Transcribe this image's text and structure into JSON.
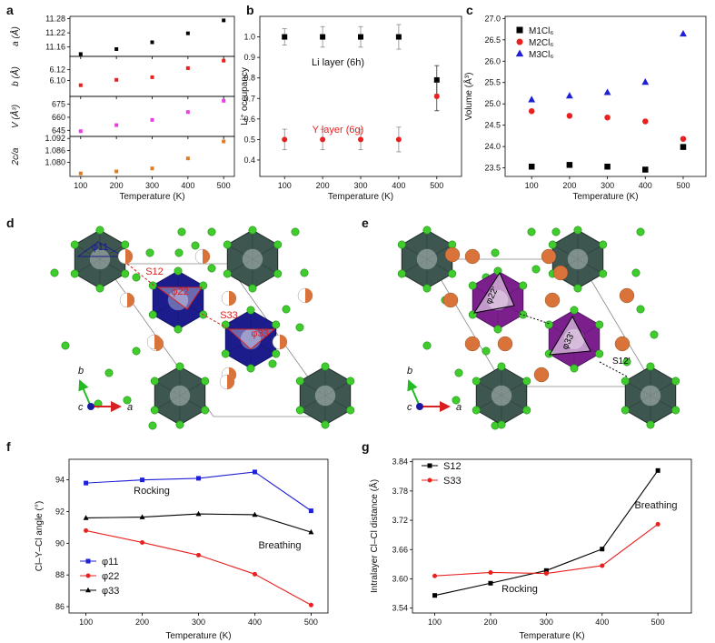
{
  "figure": {
    "panel_labels": [
      "a",
      "b",
      "c",
      "d",
      "e",
      "f",
      "g"
    ]
  },
  "chart_data": [
    {
      "id": "a",
      "type": "scatter",
      "xlabel": "Temperature (K)",
      "x": [
        100,
        200,
        300,
        400,
        500
      ],
      "xticks": [
        100,
        200,
        300,
        400,
        500
      ],
      "subplots": [
        {
          "ylabel": "a (Å)",
          "color": "#000000",
          "ylim": [
            11.12,
            11.29
          ],
          "yticks": [
            11.16,
            11.22,
            11.28
          ],
          "values": [
            11.13,
            11.151,
            11.18,
            11.218,
            11.273
          ]
        },
        {
          "ylabel": "b (Å)",
          "color": "#e8201f",
          "ylim": [
            6.07,
            6.145
          ],
          "yticks": [
            6.1,
            6.12
          ],
          "values": [
            6.091,
            6.101,
            6.106,
            6.123,
            6.137
          ]
        },
        {
          "ylabel": "V (Å³)",
          "color": "#e93ce8",
          "ylim": [
            638,
            684
          ],
          "yticks": [
            645,
            660,
            675
          ],
          "values": [
            644,
            651,
            657,
            666,
            679
          ]
        },
        {
          "ylabel": "2c/a",
          "color": "#e07b20",
          "ylim": [
            1.073,
            1.093
          ],
          "yticks": [
            1.08,
            1.086,
            1.092
          ],
          "values": [
            1.0745,
            1.0755,
            1.077,
            1.082,
            1.0905
          ]
        }
      ]
    },
    {
      "id": "b",
      "type": "scatter",
      "xlabel": "Temperature (K)",
      "ylabel": "Li⁺ occupancy",
      "x": [
        100,
        200,
        300,
        400,
        500
      ],
      "xticks": [
        100,
        200,
        300,
        400,
        500
      ],
      "ylim": [
        0.32,
        1.1
      ],
      "yticks": [
        0.4,
        0.5,
        0.6,
        0.7,
        0.8,
        0.9,
        1.0
      ],
      "series": [
        {
          "name": "Li layer (6h)",
          "color": "#000000",
          "values": [
            1.0,
            1.0,
            1.0,
            1.0,
            0.79
          ],
          "errors": [
            0.04,
            0.05,
            0.05,
            0.06,
            0.07
          ]
        },
        {
          "name": "Y layer (6g)",
          "color": "#e8201f",
          "values": [
            0.5,
            0.5,
            0.5,
            0.5,
            0.71
          ],
          "errors": [
            0.05,
            0.05,
            0.05,
            0.06,
            0.07
          ]
        }
      ]
    },
    {
      "id": "c",
      "type": "scatter",
      "xlabel": "Temperature (K)",
      "ylabel": "Volume (Å³)",
      "x": [
        100,
        200,
        300,
        400,
        500
      ],
      "xticks": [
        100,
        200,
        300,
        400,
        500
      ],
      "ylim": [
        23.3,
        27.05
      ],
      "yticks": [
        23.5,
        24.0,
        24.5,
        25.0,
        25.5,
        26.0,
        26.5,
        27.0
      ],
      "series": [
        {
          "name": "M1Cl₆",
          "color": "#000000",
          "marker": "square",
          "values": [
            23.53,
            23.57,
            23.53,
            23.46,
            23.99
          ]
        },
        {
          "name": "M2Cl₆",
          "color": "#e8201f",
          "marker": "circle",
          "values": [
            24.83,
            24.72,
            24.68,
            24.59,
            24.18
          ]
        },
        {
          "name": "M3Cl₆",
          "color": "#1f1fd6",
          "marker": "triangle",
          "values": [
            25.1,
            25.19,
            25.27,
            25.51,
            26.64
          ]
        }
      ]
    },
    {
      "id": "f",
      "type": "line",
      "xlabel": "Temperature (K)",
      "ylabel": "Cl–Y–Cl angle (°)",
      "x": [
        100,
        200,
        300,
        400,
        500
      ],
      "xticks": [
        100,
        200,
        300,
        400,
        500
      ],
      "ylim": [
        85.6,
        95.3
      ],
      "yticks": [
        86,
        88,
        90,
        92,
        94
      ],
      "annotations": [
        "Rocking",
        "Breathing"
      ],
      "series": [
        {
          "name": "φ11",
          "color": "#1f1fd6",
          "marker": "square",
          "values": [
            93.8,
            94.0,
            94.1,
            94.5,
            92.05
          ]
        },
        {
          "name": "φ22",
          "color": "#e8201f",
          "marker": "circle",
          "values": [
            90.8,
            90.05,
            89.25,
            88.05,
            86.1
          ]
        },
        {
          "name": "φ33",
          "color": "#000000",
          "marker": "triangle",
          "values": [
            91.6,
            91.65,
            91.85,
            91.8,
            90.7
          ]
        }
      ]
    },
    {
      "id": "g",
      "type": "line",
      "xlabel": "Temperature (K)",
      "ylabel": "Intralayer Cl–Cl distance (Å)",
      "x": [
        100,
        200,
        300,
        400,
        500
      ],
      "xticks": [
        100,
        200,
        300,
        400,
        500
      ],
      "ylim": [
        3.53,
        3.845
      ],
      "yticks": [
        3.54,
        3.6,
        3.66,
        3.72,
        3.78,
        3.84
      ],
      "annotations": [
        "Rocking",
        "Breathing"
      ],
      "series": [
        {
          "name": "S12",
          "color": "#000000",
          "marker": "square",
          "values": [
            3.566,
            3.591,
            3.617,
            3.661,
            3.822
          ]
        },
        {
          "name": "S33",
          "color": "#e8201f",
          "marker": "circle",
          "values": [
            3.606,
            3.613,
            3.611,
            3.627,
            3.712
          ]
        }
      ]
    }
  ],
  "structures": {
    "d": {
      "labels": [
        "φ11",
        "S12",
        "φ22",
        "S33",
        "φ33"
      ],
      "axes": [
        "b",
        "c",
        "a"
      ]
    },
    "e": {
      "labels": [
        "φ22'",
        "φ33'",
        "S12'"
      ],
      "axes": [
        "b",
        "c",
        "a"
      ]
    }
  }
}
